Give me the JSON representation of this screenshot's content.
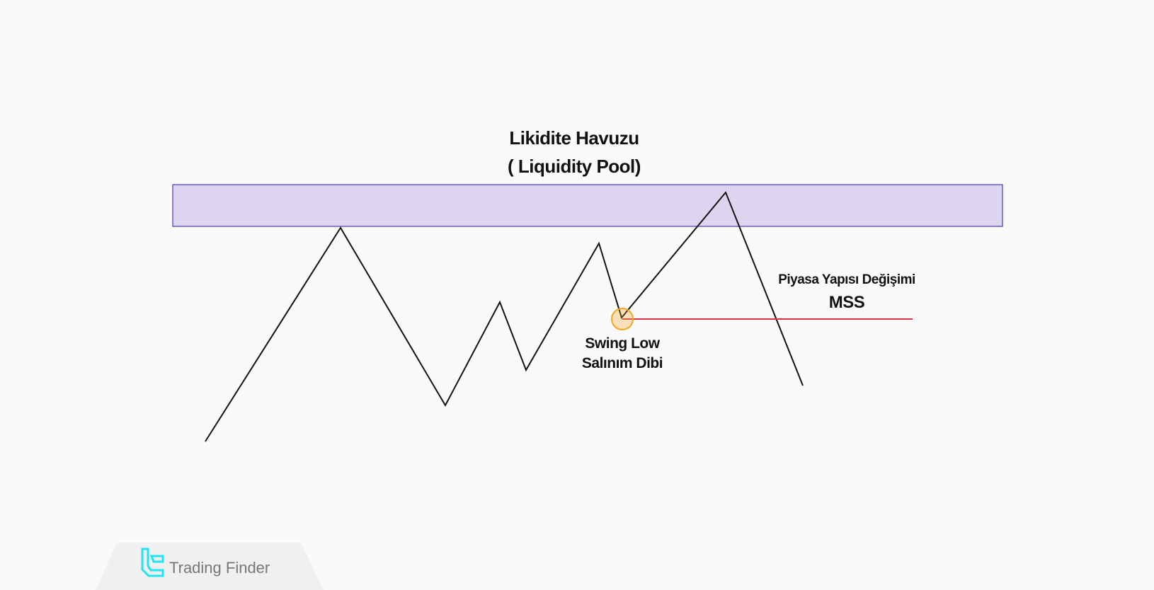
{
  "title": {
    "line1": "Likidite Havuzu",
    "line2": "( Liquidity Pool)"
  },
  "mss": {
    "label": "Piyasa Yapısı Değişimi",
    "abbr": "MSS"
  },
  "swing_low": {
    "line1": "Swing Low",
    "line2": "Salınım Dibi"
  },
  "brand": {
    "name": "Trading Finder",
    "logo_color": "#22e3f0",
    "text_color": "#777777"
  },
  "colors": {
    "pool_fill": "#ddd5ef",
    "pool_stroke": "#4b3aa8",
    "price_line": "#111111",
    "mss_line": "#d6334a",
    "swing_marker": "#f5a623"
  }
}
